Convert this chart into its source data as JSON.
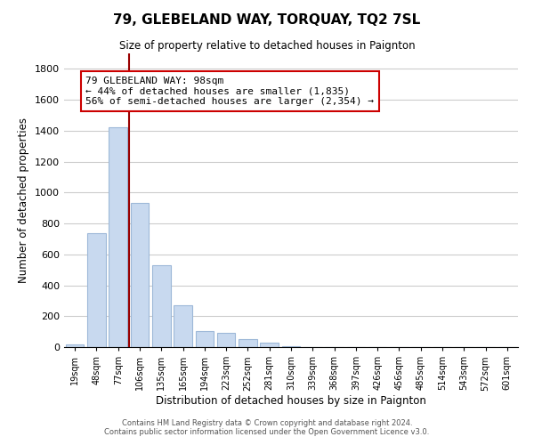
{
  "title": "79, GLEBELAND WAY, TORQUAY, TQ2 7SL",
  "subtitle": "Size of property relative to detached houses in Paignton",
  "xlabel": "Distribution of detached houses by size in Paignton",
  "ylabel": "Number of detached properties",
  "footer_line1": "Contains HM Land Registry data © Crown copyright and database right 2024.",
  "footer_line2": "Contains public sector information licensed under the Open Government Licence v3.0.",
  "bar_labels": [
    "19sqm",
    "48sqm",
    "77sqm",
    "106sqm",
    "135sqm",
    "165sqm",
    "194sqm",
    "223sqm",
    "252sqm",
    "281sqm",
    "310sqm",
    "339sqm",
    "368sqm",
    "397sqm",
    "426sqm",
    "456sqm",
    "485sqm",
    "514sqm",
    "543sqm",
    "572sqm",
    "601sqm"
  ],
  "bar_values": [
    20,
    735,
    1420,
    935,
    530,
    270,
    105,
    93,
    50,
    28,
    8,
    2,
    1,
    0,
    0,
    0,
    0,
    0,
    0,
    0,
    0
  ],
  "bar_color": "#c8d9ef",
  "bar_edge_color": "#9db8d8",
  "marker_line_color": "#990000",
  "annotation_text_line1": "79 GLEBELAND WAY: 98sqm",
  "annotation_text_line2": "← 44% of detached houses are smaller (1,835)",
  "annotation_text_line3": "56% of semi-detached houses are larger (2,354) →",
  "annotation_box_color": "#ffffff",
  "annotation_box_edge": "#cc0000",
  "ylim": [
    0,
    1900
  ],
  "yticks": [
    0,
    200,
    400,
    600,
    800,
    1000,
    1200,
    1400,
    1600,
    1800
  ],
  "background_color": "#ffffff",
  "grid_color": "#cccccc",
  "figwidth": 6.0,
  "figheight": 5.0,
  "dpi": 100
}
